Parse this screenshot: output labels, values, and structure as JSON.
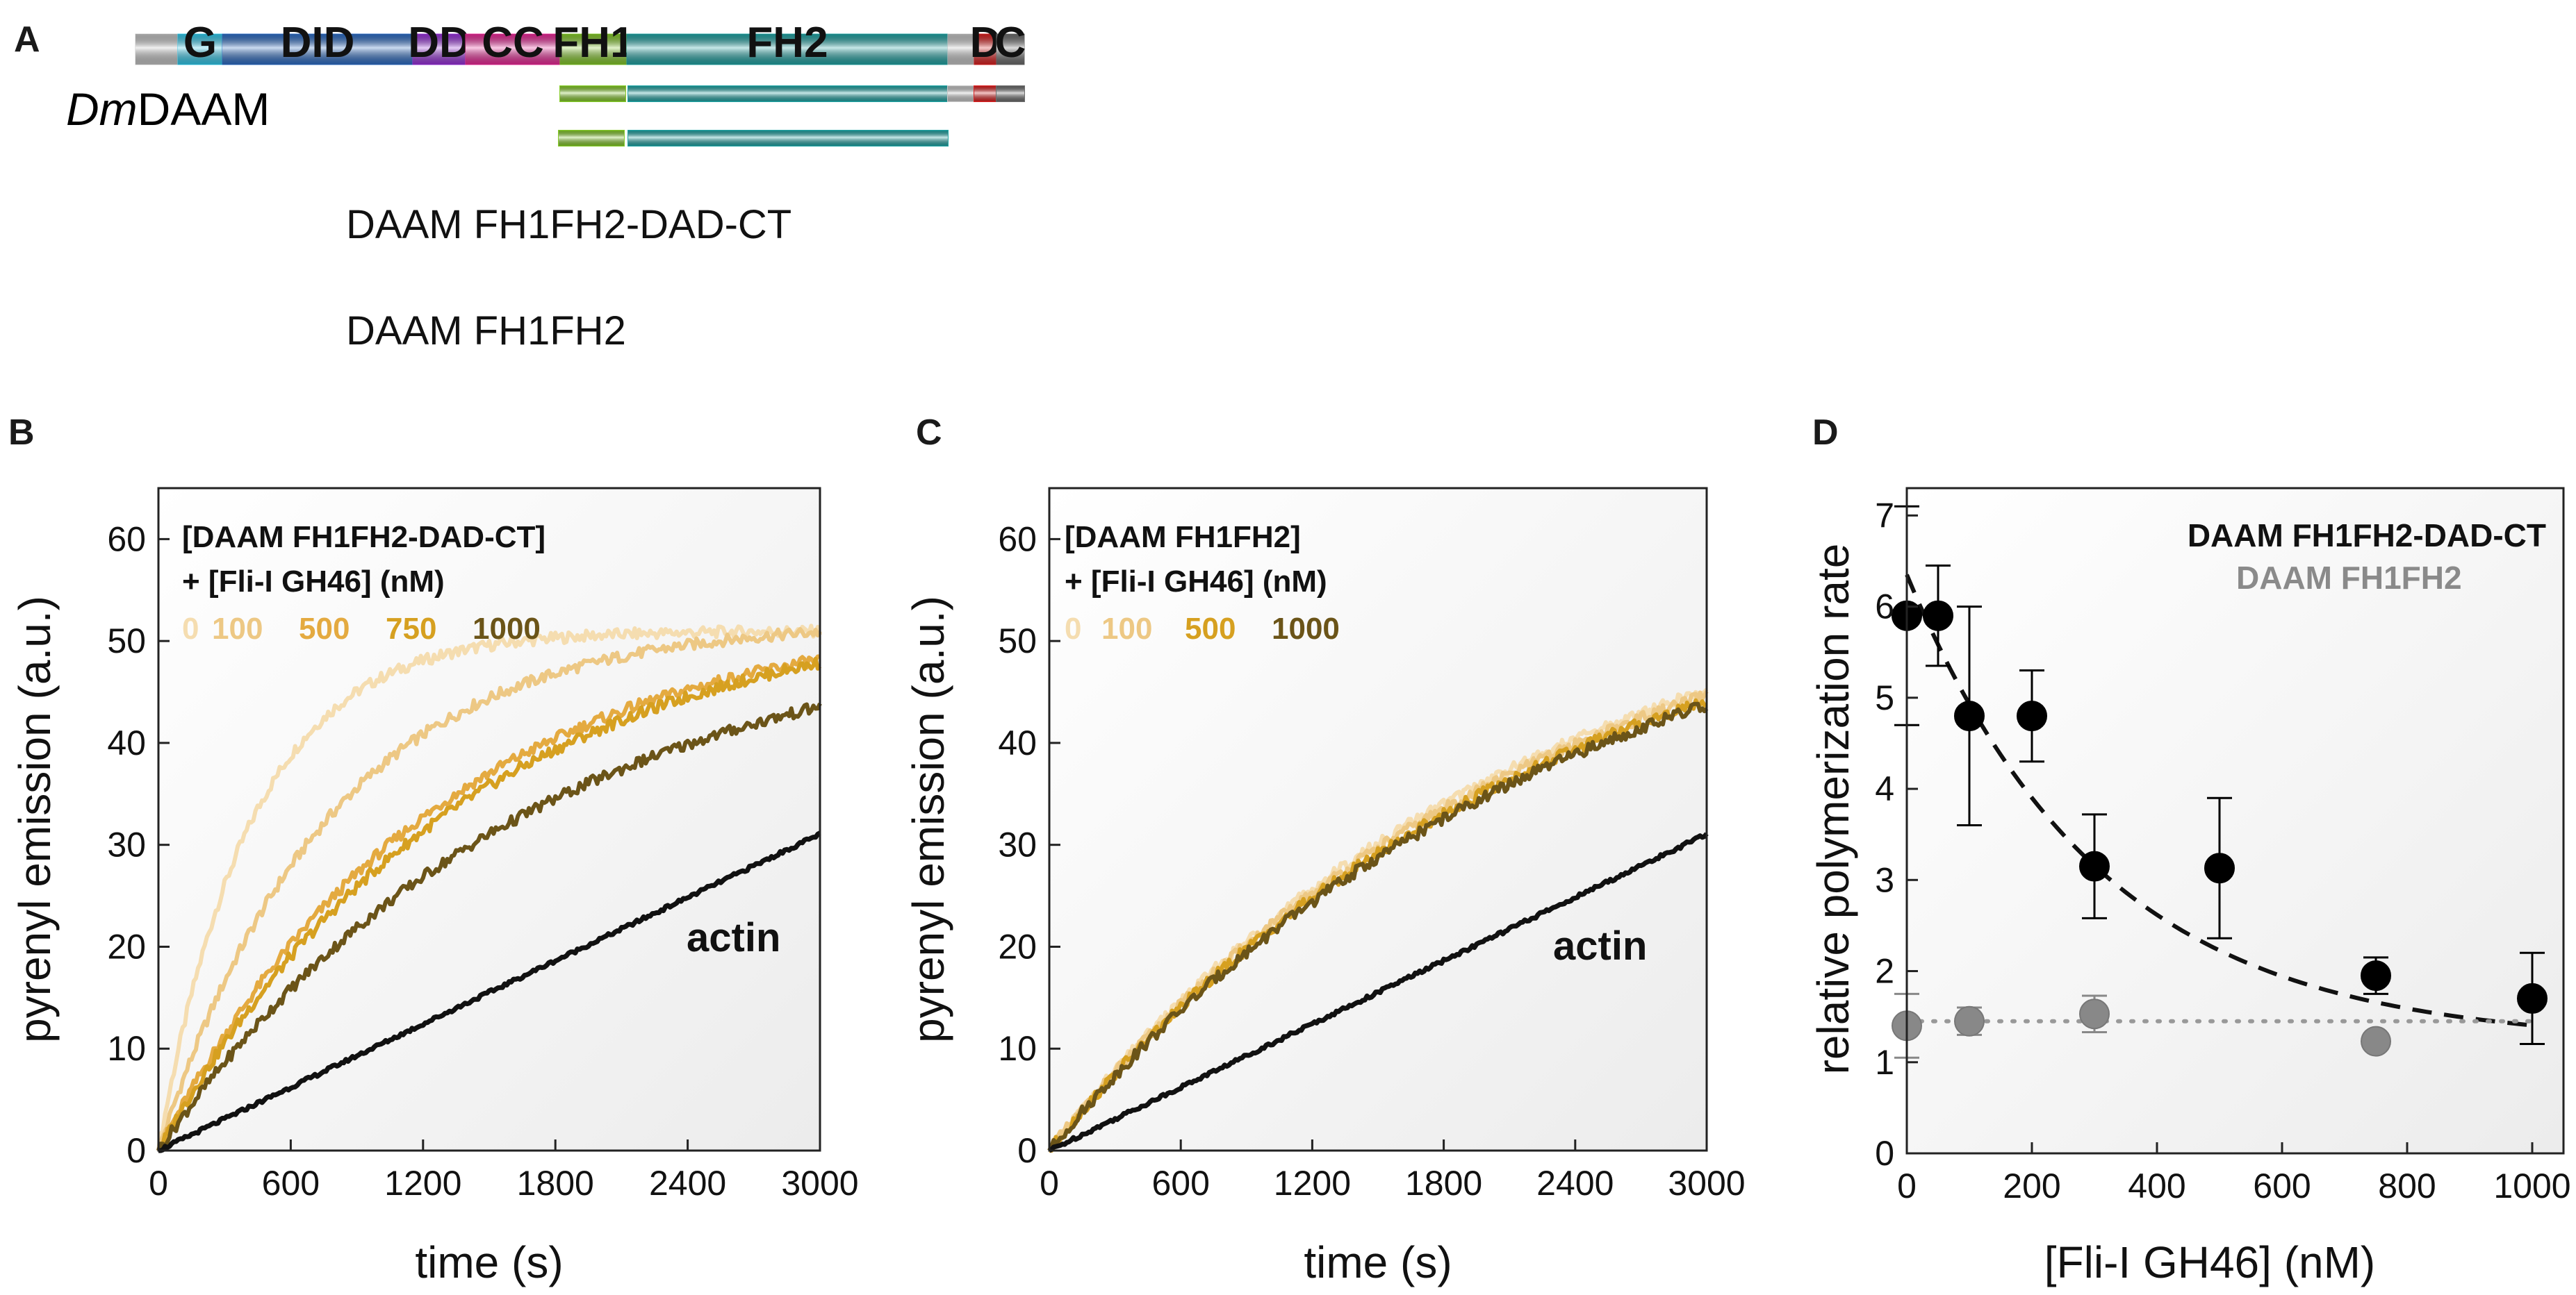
{
  "figure": {
    "panel_letters": [
      "A",
      "B",
      "C",
      "D"
    ]
  },
  "panel_a": {
    "protein_label_italic": "Dm",
    "protein_label_rest": "DAAM",
    "domains": [
      {
        "label": "",
        "color": "#c8c8c8"
      },
      {
        "label": "G",
        "color": "#33ccee"
      },
      {
        "label": "DID",
        "color": "#2f6fc8"
      },
      {
        "label": "DD",
        "color": "#9b33dd"
      },
      {
        "label": "CC",
        "color": "#ee2a9a"
      },
      {
        "label": "FH1",
        "color": "#86cc2a"
      },
      {
        "label": "FH2",
        "color": "#22a6a6"
      },
      {
        "label": "",
        "color": "#c8c8c8"
      },
      {
        "label": "D",
        "color": "#dd2222"
      },
      {
        "label": "C",
        "color": "#6e6e6e"
      }
    ],
    "constructs": [
      {
        "name": "DAAM FH1FH2-DAD-CT"
      },
      {
        "name": "DAAM FH1FH2"
      }
    ]
  },
  "chart_data": [
    {
      "panel": "B",
      "type": "line",
      "xlabel": "time (s)",
      "ylabel": "pyrenyl emission (a.u.)",
      "xlim": [
        0,
        3000
      ],
      "ylim": [
        0,
        65
      ],
      "xticks": [
        0,
        600,
        1200,
        1800,
        2400,
        3000
      ],
      "yticks": [
        0,
        10,
        20,
        30,
        40,
        50,
        60
      ],
      "legend_title_line1": "[DAAM FH1FH2-DAD-CT]",
      "legend_title_line2": "+ [Fli-I GH46] (nM)",
      "annotation": "actin",
      "series": [
        {
          "name": "0",
          "color": "#f5ddb0",
          "type": "exp",
          "A": 51,
          "tau": 420
        },
        {
          "name": "100",
          "color": "#edc884",
          "type": "exp",
          "A": 52,
          "tau": 780
        },
        {
          "name": "500",
          "color": "#e4aa40",
          "type": "exp",
          "A": 53,
          "tau": 1250
        },
        {
          "name": "750",
          "color": "#d6a020",
          "type": "exp",
          "A": 54,
          "tau": 1380
        },
        {
          "name": "1000",
          "color": "#6b5418",
          "type": "exp",
          "A": 52,
          "tau": 1650
        },
        {
          "name": "actin",
          "color": "#111111",
          "type": "lin",
          "m": 0.01035
        }
      ]
    },
    {
      "panel": "C",
      "type": "line",
      "xlabel": "time (s)",
      "ylabel": "pyrenyl emission (a.u.)",
      "xlim": [
        0,
        3000
      ],
      "ylim": [
        0,
        65
      ],
      "xticks": [
        0,
        600,
        1200,
        1800,
        2400,
        3000
      ],
      "yticks": [
        0,
        10,
        20,
        30,
        40,
        50,
        60
      ],
      "legend_title_line1": "[DAAM FH1FH2]",
      "legend_title_line2": "+ [Fli-I GH46] (nM)",
      "annotation": "actin",
      "series": [
        {
          "name": "0",
          "color": "#f5ddb0",
          "type": "exp",
          "A": 60,
          "tau": 2150
        },
        {
          "name": "100",
          "color": "#edc884",
          "type": "exp",
          "A": 60,
          "tau": 2200
        },
        {
          "name": "500",
          "color": "#d6a020",
          "type": "exp",
          "A": 60,
          "tau": 2250
        },
        {
          "name": "1000",
          "color": "#6b5418",
          "type": "exp",
          "A": 60,
          "tau": 2300
        },
        {
          "name": "actin",
          "color": "#111111",
          "type": "lin",
          "m": 0.01035
        }
      ]
    },
    {
      "panel": "D",
      "type": "scatter",
      "xlabel": "[Fli-I GH46] (nM)",
      "ylabel": "relative polymerization rate",
      "xlim": [
        0,
        1050
      ],
      "ylim": [
        0,
        7.3
      ],
      "xticks": [
        0,
        200,
        400,
        600,
        800,
        1000
      ],
      "yticks": [
        0,
        1,
        2,
        3,
        4,
        5,
        6,
        7
      ],
      "series": [
        {
          "name": "DAAM FH1FH2-DAD-CT",
          "color": "#000000",
          "x": [
            0,
            50,
            100,
            200,
            300,
            500,
            750,
            1000
          ],
          "y": [
            5.9,
            5.9,
            4.8,
            4.8,
            3.15,
            3.13,
            1.95,
            1.7
          ],
          "err": [
            1.2,
            0.55,
            1.2,
            0.5,
            0.57,
            0.77,
            0.2,
            0.5
          ],
          "fit": {
            "style": "dashed",
            "y0": 1.2,
            "A": 5.15,
            "k": 310
          }
        },
        {
          "name": "DAAM FH1FH2",
          "color": "#888888",
          "x": [
            0,
            100,
            300,
            750
          ],
          "y": [
            1.4,
            1.45,
            1.53,
            1.23
          ],
          "err": [
            0.35,
            0.15,
            0.2,
            0.05
          ],
          "fit": {
            "style": "dotted",
            "y": 1.45
          }
        }
      ]
    }
  ]
}
